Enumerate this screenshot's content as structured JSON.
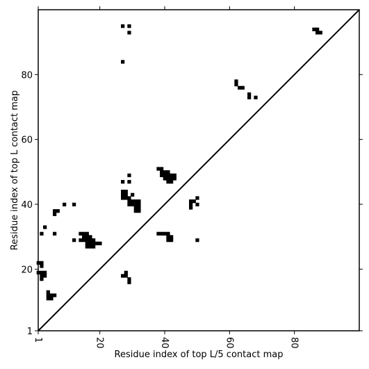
{
  "chart_data": {
    "type": "heatmap",
    "title": "",
    "xlabel": "Residue index of top L/5 contact map",
    "ylabel": "Residue index of top L contact map",
    "xlim": [
      1,
      100
    ],
    "ylim": [
      1,
      100
    ],
    "x_ticks": [
      1,
      20,
      40,
      60,
      80
    ],
    "y_ticks": [
      1,
      20,
      40,
      60,
      80
    ],
    "x_tick_labels": [
      "1",
      "20",
      "40",
      "60",
      "80"
    ],
    "y_tick_labels": [
      "1",
      "20",
      "40",
      "60",
      "80"
    ],
    "x_tick_rotation": -90,
    "diagonal": {
      "from": [
        1,
        1
      ],
      "to": [
        100,
        100
      ]
    },
    "grid": false,
    "legend": "none",
    "cell_color": "#000000",
    "background_color": "#ffffff",
    "cells": [
      [
        27,
        95
      ],
      [
        29,
        95
      ],
      [
        29,
        93
      ],
      [
        27,
        84
      ],
      [
        86,
        94
      ],
      [
        87,
        94
      ],
      [
        87,
        93
      ],
      [
        88,
        93
      ],
      [
        62,
        78
      ],
      [
        62,
        77
      ],
      [
        63,
        76
      ],
      [
        64,
        76
      ],
      [
        66,
        74
      ],
      [
        66,
        73
      ],
      [
        68,
        73
      ],
      [
        38,
        51
      ],
      [
        39,
        51
      ],
      [
        39,
        50
      ],
      [
        40,
        50
      ],
      [
        41,
        50
      ],
      [
        39,
        49
      ],
      [
        40,
        49
      ],
      [
        41,
        49
      ],
      [
        42,
        49
      ],
      [
        43,
        49
      ],
      [
        40,
        48
      ],
      [
        41,
        48
      ],
      [
        42,
        48
      ],
      [
        43,
        48
      ],
      [
        41,
        47
      ],
      [
        42,
        47
      ],
      [
        29,
        49
      ],
      [
        27,
        47
      ],
      [
        29,
        47
      ],
      [
        27,
        44
      ],
      [
        28,
        44
      ],
      [
        27,
        43
      ],
      [
        28,
        43
      ],
      [
        27,
        42
      ],
      [
        28,
        42
      ],
      [
        29,
        42
      ],
      [
        30,
        43
      ],
      [
        29,
        41
      ],
      [
        30,
        41
      ],
      [
        31,
        41
      ],
      [
        32,
        41
      ],
      [
        29,
        40
      ],
      [
        30,
        40
      ],
      [
        31,
        40
      ],
      [
        32,
        40
      ],
      [
        31,
        39
      ],
      [
        32,
        39
      ],
      [
        31,
        38
      ],
      [
        32,
        38
      ],
      [
        48,
        41
      ],
      [
        49,
        41
      ],
      [
        48,
        40
      ],
      [
        50,
        40
      ],
      [
        48,
        39
      ],
      [
        50,
        42
      ],
      [
        38,
        31
      ],
      [
        39,
        31
      ],
      [
        40,
        31
      ],
      [
        41,
        31
      ],
      [
        41,
        30
      ],
      [
        42,
        30
      ],
      [
        41,
        29
      ],
      [
        42,
        29
      ],
      [
        50,
        29
      ],
      [
        9,
        40
      ],
      [
        12,
        40
      ],
      [
        6,
        38
      ],
      [
        7,
        38
      ],
      [
        6,
        37
      ],
      [
        3,
        33
      ],
      [
        2,
        31
      ],
      [
        6,
        31
      ],
      [
        14,
        31
      ],
      [
        15,
        31
      ],
      [
        16,
        31
      ],
      [
        12,
        29
      ],
      [
        14,
        29
      ],
      [
        15,
        30
      ],
      [
        16,
        30
      ],
      [
        17,
        30
      ],
      [
        15,
        29
      ],
      [
        16,
        29
      ],
      [
        17,
        29
      ],
      [
        18,
        29
      ],
      [
        16,
        28
      ],
      [
        17,
        28
      ],
      [
        18,
        28
      ],
      [
        19,
        28
      ],
      [
        20,
        28
      ],
      [
        16,
        27
      ],
      [
        17,
        27
      ],
      [
        18,
        27
      ],
      [
        1,
        22
      ],
      [
        2,
        22
      ],
      [
        2,
        21
      ],
      [
        1,
        19
      ],
      [
        2,
        19
      ],
      [
        3,
        19
      ],
      [
        2,
        18
      ],
      [
        3,
        18
      ],
      [
        2,
        17
      ],
      [
        4,
        13
      ],
      [
        4,
        12
      ],
      [
        5,
        12
      ],
      [
        6,
        12
      ],
      [
        4,
        11
      ],
      [
        5,
        11
      ],
      [
        28,
        19
      ],
      [
        27,
        18
      ],
      [
        28,
        18
      ],
      [
        29,
        17
      ],
      [
        29,
        16
      ]
    ]
  }
}
